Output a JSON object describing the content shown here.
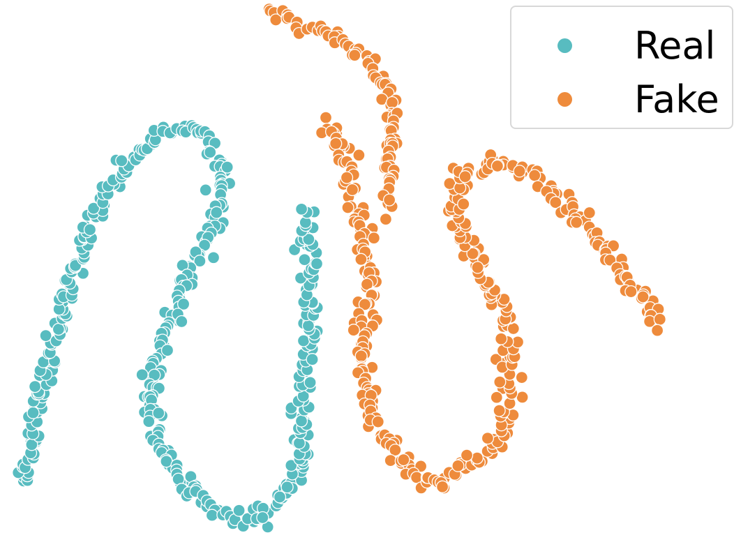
{
  "chart_data": {
    "type": "scatter",
    "title": "",
    "xlabel": "",
    "ylabel": "",
    "axes_visible": false,
    "grid": false,
    "legend_position": "top-right",
    "series": [
      {
        "name": "Real",
        "color": "#58BCC0",
        "clusters": [
          {
            "path": [
              [
                -95,
                -60
              ],
              [
                -92,
                -38
              ],
              [
                -88,
                -18
              ],
              [
                -84,
                2
              ],
              [
                -79,
                20
              ],
              [
                -73,
                36
              ],
              [
                -66,
                49
              ],
              [
                -58,
                58
              ],
              [
                -50,
                60
              ],
              [
                -44,
                57
              ],
              [
                -41,
                50
              ],
              [
                -40,
                40
              ],
              [
                -42,
                30
              ],
              [
                -45,
                20
              ],
              [
                -49,
                12
              ],
              [
                -52,
                4
              ],
              [
                -55,
                -6
              ],
              [
                -58,
                -18
              ],
              [
                -60,
                -30
              ],
              [
                -58,
                -46
              ],
              [
                -50,
                -60
              ],
              [
                -41,
                -70
              ],
              [
                -34,
                -72
              ]
            ],
            "jitter": 1.2
          },
          {
            "path": [
              [
                -34,
                -72
              ],
              [
                -26,
                -68
              ],
              [
                -20,
                -60
              ],
              [
                -18,
                -50
              ],
              [
                -18,
                -38
              ],
              [
                -17,
                -24
              ],
              [
                -16,
                -10
              ],
              [
                -16,
                6
              ],
              [
                -16,
                20
              ],
              [
                -17,
                32
              ]
            ],
            "jitter": 1.5
          }
        ]
      },
      {
        "name": "Fake",
        "color": "#EE8B3C",
        "clusters": [
          {
            "path": [
              [
                -28,
                98
              ],
              [
                -20,
                95
              ],
              [
                -12,
                92
              ],
              [
                -4,
                87
              ],
              [
                2,
                80
              ],
              [
                6,
                72
              ],
              [
                8,
                62
              ],
              [
                7,
                52
              ],
              [
                6,
                42
              ],
              [
                6,
                32
              ]
            ],
            "jitter": 1.0
          },
          {
            "path": [
              [
                -10,
                62
              ],
              [
                -7,
                50
              ],
              [
                -4,
                38
              ],
              [
                -2,
                26
              ],
              [
                0,
                14
              ],
              [
                1,
                2
              ],
              [
                -1,
                -10
              ],
              [
                -1,
                -22
              ],
              [
                1,
                -34
              ],
              [
                6,
                -46
              ],
              [
                14,
                -56
              ],
              [
                21,
                -60
              ]
            ],
            "jitter": 1.5
          },
          {
            "path": [
              [
                21,
                -60
              ],
              [
                27,
                -55
              ],
              [
                33,
                -50
              ],
              [
                38,
                -42
              ],
              [
                40,
                -30
              ],
              [
                40,
                -16
              ],
              [
                38,
                -2
              ],
              [
                32,
                10
              ],
              [
                26,
                22
              ],
              [
                24,
                34
              ],
              [
                27,
                44
              ],
              [
                34,
                48
              ],
              [
                43,
                46
              ],
              [
                52,
                38
              ],
              [
                60,
                28
              ],
              [
                68,
                16
              ],
              [
                76,
                4
              ],
              [
                82,
                -8
              ]
            ],
            "jitter": 1.5
          }
        ]
      }
    ]
  }
}
